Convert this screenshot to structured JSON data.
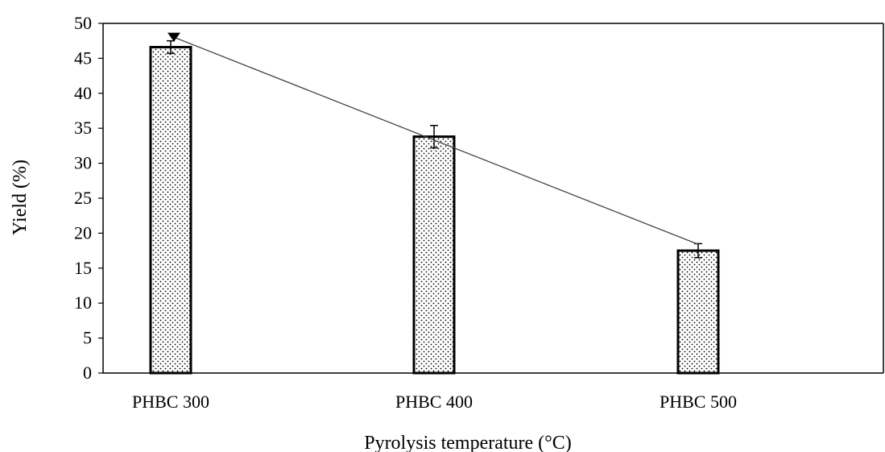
{
  "chart_data": {
    "type": "bar",
    "title": "",
    "xlabel": "Pyrolysis temperature (°C)",
    "ylabel": "Yield (%)",
    "categories": [
      "PHBC 300",
      "PHBC 400",
      "PHBC 500"
    ],
    "values": [
      46.6,
      33.8,
      17.5
    ],
    "error_bars": [
      0.9,
      1.6,
      1.0
    ],
    "ylim": [
      0,
      50
    ],
    "yticks": [
      0,
      5,
      10,
      15,
      20,
      25,
      30,
      35,
      40,
      45,
      50
    ],
    "bar_fill": "dotted pattern",
    "bar_stroke": "#000000",
    "trendline": {
      "type": "linear",
      "points": [
        {
          "category": "PHBC 300",
          "value": 48.2
        },
        {
          "category": "PHBC 500",
          "value": 18.4
        }
      ],
      "marker": "triangle-down",
      "color": "#444444"
    },
    "grid": false,
    "legend": "none"
  }
}
